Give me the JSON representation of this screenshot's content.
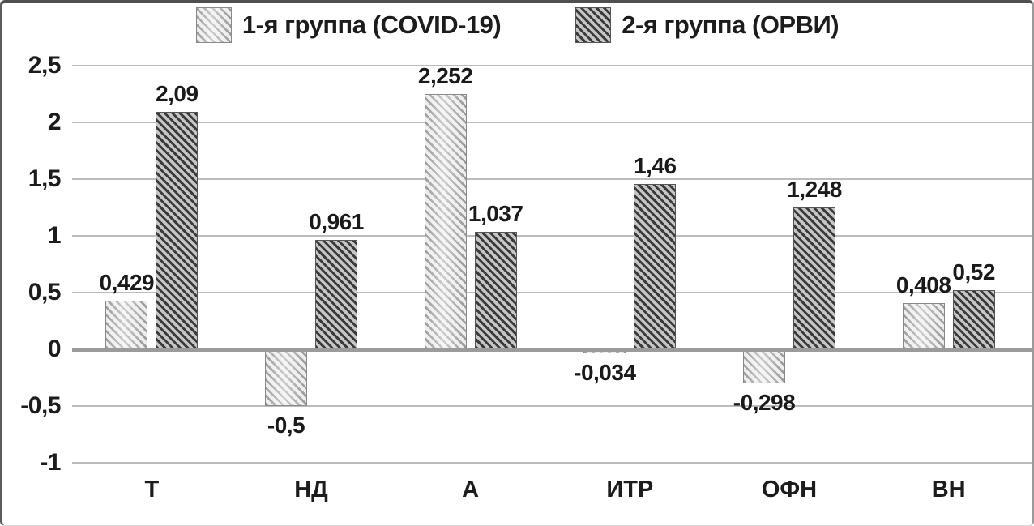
{
  "chart_data": {
    "type": "bar",
    "title": "",
    "categories": [
      "Т",
      "НД",
      "А",
      "ИТР",
      "ОФН",
      "ВН"
    ],
    "series": [
      {
        "name": "1-я группа (COVID-19)",
        "pattern": "light-diagonal-hatch",
        "values": [
          0.429,
          -0.5,
          2.252,
          -0.034,
          -0.298,
          0.408
        ],
        "value_labels": [
          "0,429",
          "-0,5",
          "2,252",
          "-0,034",
          "-0,298",
          "0,408"
        ]
      },
      {
        "name": "2-я группа (ОРВИ)",
        "pattern": "dark-diagonal-hatch",
        "values": [
          2.09,
          0.961,
          1.037,
          1.46,
          1.248,
          0.52
        ],
        "value_labels": [
          "2,09",
          "0,961",
          "1,037",
          "1,46",
          "1,248",
          "0,52"
        ]
      }
    ],
    "y_axis": {
      "min": -1,
      "max": 2.5,
      "tick_values": [
        2.5,
        2,
        1.5,
        1,
        0.5,
        0,
        -0.5,
        -1
      ],
      "tick_labels": [
        "2,5",
        "2",
        "1,5",
        "1",
        "0,5",
        "0",
        "-0,5",
        "-1"
      ]
    },
    "grid": "horizontal",
    "legend_position": "top"
  },
  "legend": {
    "items": [
      {
        "label": "1-я группа (COVID-19)"
      },
      {
        "label": "2-я группа (ОРВИ)"
      }
    ]
  },
  "colors": {
    "background": "#ffffff",
    "frame_border": "#5c5c5c",
    "gridline": "#bcbcbc",
    "zero_baseline": "#9b9b9b",
    "text": "#1c1c1c",
    "light_bar_stripe": "#9c9c9c",
    "light_bar_background": "#ededed",
    "dark_bar_stripe": "#3b3b3b",
    "dark_bar_background": "#c6c6c6"
  }
}
